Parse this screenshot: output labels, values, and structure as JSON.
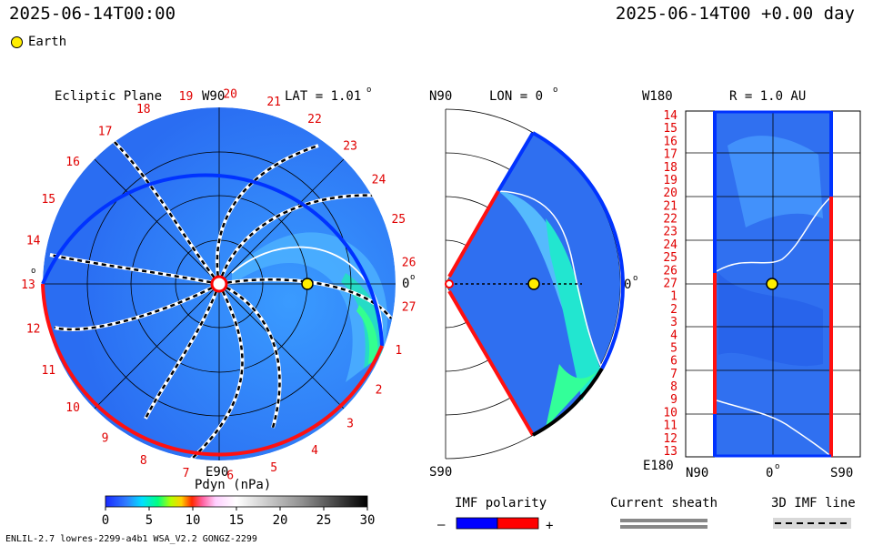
{
  "header": {
    "left_time": "2025-06-14T00:00",
    "right_time": "2025-06-14T00 +0.00 day"
  },
  "legend": {
    "earth_label": "Earth"
  },
  "ecliptic": {
    "title": "Ecliptic Plane",
    "top_label": "W90",
    "left_label": "0",
    "bottom_label": "E90",
    "right_label": "0",
    "lat_label": "LAT = 1.01",
    "rotation_labels": [
      "19",
      "20",
      "21",
      "22",
      "23",
      "24",
      "25",
      "26",
      "27",
      "1",
      "2",
      "3",
      "4",
      "5",
      "6",
      "7",
      "8",
      "9",
      "10",
      "11",
      "12",
      "13",
      "14",
      "15",
      "16",
      "17",
      "18"
    ]
  },
  "meridional": {
    "top_label": "N90",
    "lon_label": "LON = 0",
    "right_label": "0",
    "bottom_label": "S90"
  },
  "radial": {
    "top_left_label": "W180",
    "r_label": "R = 1.0 AU",
    "bottom_left_label": "E180",
    "x_labels": [
      "N90",
      "0",
      "S90"
    ],
    "row_labels": [
      "14",
      "15",
      "16",
      "17",
      "18",
      "19",
      "20",
      "21",
      "22",
      "23",
      "24",
      "25",
      "26",
      "27",
      "1",
      "2",
      "3",
      "4",
      "5",
      "6",
      "7",
      "8",
      "9",
      "10",
      "11",
      "12",
      "13"
    ]
  },
  "colorbar": {
    "title": "Pdyn (nPa)",
    "ticks": [
      0,
      5,
      10,
      15,
      20,
      25,
      30
    ],
    "tick_labels": [
      "0",
      "5",
      "10",
      "15",
      "20",
      "25",
      "30"
    ]
  },
  "imf_polarity": {
    "title": "IMF polarity",
    "minus": "–",
    "plus": "+",
    "minus_color": "#0000ff",
    "plus_color": "#ff0000"
  },
  "current_sheath": {
    "title": "Current sheath"
  },
  "imf_line": {
    "title": "3D IMF line"
  },
  "footer": {
    "model_info": "ENLIL-2.7 lowres-2299-a4b1 WSA_V2.2 GONGZ-2299"
  },
  "chart_data": {
    "type": "heatmap",
    "quantity": "Pdyn (nPa)",
    "value_range": [
      0,
      30
    ],
    "earth_position": {
      "r_au": 1.0,
      "lat_deg": 1.01,
      "lon_deg": 0
    },
    "time": "2025-06-14T00 +0.00 day"
  }
}
